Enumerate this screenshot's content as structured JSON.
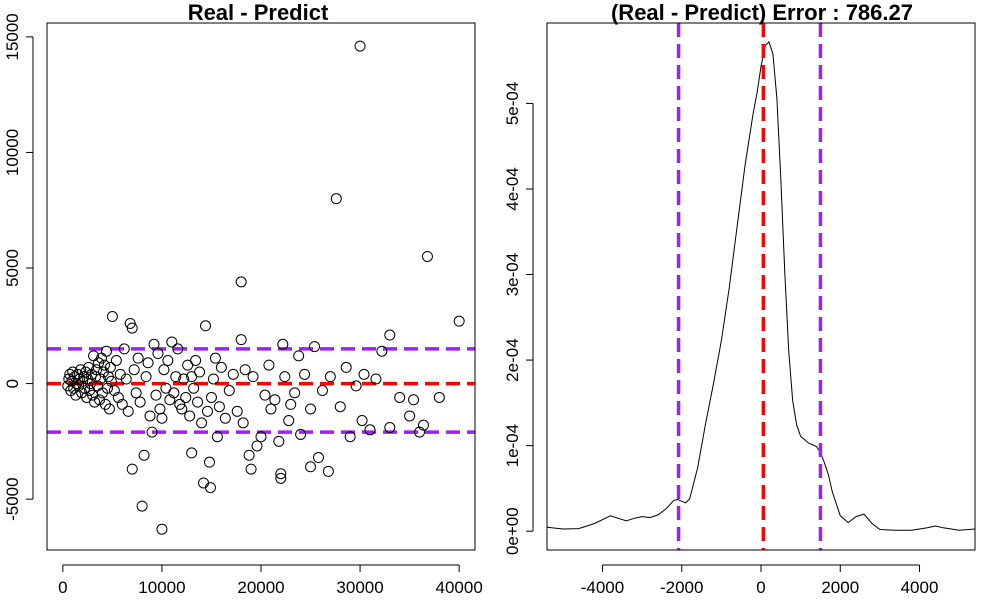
{
  "chart_data": [
    {
      "type": "scatter",
      "title": "Real - Predict",
      "xlabel": "",
      "ylabel": "",
      "xlim": [
        -1600,
        41600
      ],
      "ylim": [
        -7200,
        15600
      ],
      "x_ticks": [
        0,
        10000,
        20000,
        30000,
        40000
      ],
      "x_tick_labels": [
        "0",
        "10000",
        "20000",
        "30000",
        "40000"
      ],
      "y_ticks": [
        -5000,
        0,
        5000,
        10000,
        15000
      ],
      "y_tick_labels": [
        "-5000",
        "0",
        "5000",
        "10000",
        "15000"
      ],
      "grid": false,
      "marker": "open-circle",
      "hlines": [
        {
          "y": 0,
          "color": "#ff0000",
          "style": "dashed"
        },
        {
          "y": 1500,
          "color": "#a020f0",
          "style": "dashed"
        },
        {
          "y": -2100,
          "color": "#a020f0",
          "style": "dashed"
        }
      ],
      "points": [
        [
          500,
          -100
        ],
        [
          600,
          200
        ],
        [
          700,
          400
        ],
        [
          800,
          -300
        ],
        [
          900,
          100
        ],
        [
          1000,
          500
        ],
        [
          1100,
          -200
        ],
        [
          1200,
          300
        ],
        [
          1300,
          -500
        ],
        [
          1400,
          0
        ],
        [
          1500,
          400
        ],
        [
          1600,
          -100
        ],
        [
          1700,
          200
        ],
        [
          1800,
          600
        ],
        [
          1900,
          -400
        ],
        [
          2000,
          100
        ],
        [
          2100,
          300
        ],
        [
          2200,
          -200
        ],
        [
          2300,
          500
        ],
        [
          2400,
          -600
        ],
        [
          2500,
          200
        ],
        [
          2600,
          700
        ],
        [
          2700,
          -300
        ],
        [
          2800,
          0
        ],
        [
          2900,
          400
        ],
        [
          3000,
          -500
        ],
        [
          3100,
          1200
        ],
        [
          3200,
          -800
        ],
        [
          3300,
          300
        ],
        [
          3400,
          600
        ],
        [
          3500,
          -100
        ],
        [
          3600,
          900
        ],
        [
          3700,
          -700
        ],
        [
          3800,
          200
        ],
        [
          3900,
          1100
        ],
        [
          4000,
          -400
        ],
        [
          4100,
          500
        ],
        [
          4200,
          800
        ],
        [
          4300,
          -900
        ],
        [
          4400,
          1400
        ],
        [
          4500,
          -200
        ],
        [
          4600,
          300
        ],
        [
          4700,
          -1100
        ],
        [
          4800,
          700
        ],
        [
          4900,
          100
        ],
        [
          5000,
          2900
        ],
        [
          5200,
          -300
        ],
        [
          5400,
          1000
        ],
        [
          5600,
          -600
        ],
        [
          5800,
          400
        ],
        [
          6000,
          -900
        ],
        [
          6200,
          1500
        ],
        [
          6400,
          200
        ],
        [
          6600,
          -1200
        ],
        [
          6800,
          2600
        ],
        [
          7000,
          2400
        ],
        [
          7000,
          -3700
        ],
        [
          7200,
          600
        ],
        [
          7400,
          -400
        ],
        [
          7600,
          1100
        ],
        [
          7800,
          -800
        ],
        [
          8000,
          -5300
        ],
        [
          8200,
          -3100
        ],
        [
          8400,
          300
        ],
        [
          8600,
          900
        ],
        [
          8800,
          -1400
        ],
        [
          9000,
          -2100
        ],
        [
          9200,
          1700
        ],
        [
          9400,
          -500
        ],
        [
          9600,
          1300
        ],
        [
          9800,
          -1100
        ],
        [
          10000,
          -6300
        ],
        [
          10000,
          -1500
        ],
        [
          10200,
          600
        ],
        [
          10400,
          -200
        ],
        [
          10600,
          1000
        ],
        [
          10800,
          -700
        ],
        [
          11000,
          1800
        ],
        [
          11200,
          -400
        ],
        [
          11400,
          300
        ],
        [
          11600,
          1500
        ],
        [
          11800,
          -900
        ],
        [
          12000,
          -1100
        ],
        [
          12200,
          200
        ],
        [
          12400,
          -600
        ],
        [
          12600,
          800
        ],
        [
          12800,
          -1400
        ],
        [
          13000,
          -3000
        ],
        [
          13000,
          300
        ],
        [
          13200,
          -200
        ],
        [
          13400,
          1000
        ],
        [
          13600,
          -800
        ],
        [
          13800,
          500
        ],
        [
          14000,
          -1700
        ],
        [
          14200,
          -4300
        ],
        [
          14400,
          2500
        ],
        [
          14600,
          -1200
        ],
        [
          14800,
          -3400
        ],
        [
          14900,
          -4500
        ],
        [
          15000,
          -600
        ],
        [
          15200,
          200
        ],
        [
          15400,
          1100
        ],
        [
          15600,
          -2300
        ],
        [
          15800,
          -1000
        ],
        [
          16000,
          700
        ],
        [
          16400,
          -1500
        ],
        [
          16800,
          -300
        ],
        [
          17200,
          400
        ],
        [
          17600,
          -1200
        ],
        [
          18000,
          4400
        ],
        [
          18000,
          1900
        ],
        [
          18200,
          -1700
        ],
        [
          18400,
          600
        ],
        [
          18800,
          -3100
        ],
        [
          19000,
          -3700
        ],
        [
          19200,
          300
        ],
        [
          19600,
          -2700
        ],
        [
          20000,
          -2300
        ],
        [
          20400,
          -500
        ],
        [
          20800,
          800
        ],
        [
          21000,
          -1100
        ],
        [
          21400,
          -700
        ],
        [
          21800,
          -2500
        ],
        [
          22000,
          -3900
        ],
        [
          22000,
          -4100
        ],
        [
          22200,
          1700
        ],
        [
          22400,
          300
        ],
        [
          22800,
          -1600
        ],
        [
          23000,
          -900
        ],
        [
          23400,
          -400
        ],
        [
          23800,
          1200
        ],
        [
          24000,
          -2200
        ],
        [
          24400,
          400
        ],
        [
          25000,
          -3600
        ],
        [
          25000,
          -1100
        ],
        [
          25400,
          1600
        ],
        [
          25800,
          -3200
        ],
        [
          26200,
          -300
        ],
        [
          26800,
          -3800
        ],
        [
          27000,
          300
        ],
        [
          27600,
          8000
        ],
        [
          28000,
          -1000
        ],
        [
          28600,
          700
        ],
        [
          29000,
          -2300
        ],
        [
          29600,
          -100
        ],
        [
          30000,
          14600
        ],
        [
          30200,
          -1600
        ],
        [
          30400,
          400
        ],
        [
          31000,
          -2000
        ],
        [
          31600,
          200
        ],
        [
          32200,
          1400
        ],
        [
          33000,
          -1900
        ],
        [
          33000,
          2100
        ],
        [
          34000,
          -600
        ],
        [
          35000,
          -1400
        ],
        [
          35400,
          -700
        ],
        [
          36000,
          -2100
        ],
        [
          36400,
          -1800
        ],
        [
          36800,
          5500
        ],
        [
          38000,
          -600
        ],
        [
          40000,
          2700
        ]
      ]
    },
    {
      "type": "line",
      "title": "(Real - Predict) Error : 786.27",
      "xlabel": "",
      "ylabel": "",
      "xlim": [
        -5400,
        5400
      ],
      "ylim": [
        -2.2e-05,
        0.000594
      ],
      "x_ticks": [
        -4000,
        -2000,
        0,
        2000,
        4000
      ],
      "x_tick_labels": [
        "-4000",
        "-2000",
        "0",
        "2000",
        "4000"
      ],
      "y_ticks": [
        0,
        0.0001,
        0.0002,
        0.0003,
        0.0004,
        0.0005
      ],
      "y_tick_labels": [
        "0e+00",
        "1e-04",
        "2e-04",
        "3e-04",
        "4e-04",
        "5e-04"
      ],
      "grid": false,
      "vlines": [
        {
          "x": -2080,
          "color": "#a020f0",
          "style": "dashed"
        },
        {
          "x": 60,
          "color": "#ff0000",
          "style": "dashed"
        },
        {
          "x": 1500,
          "color": "#a020f0",
          "style": "dashed"
        }
      ],
      "x": [
        -5400,
        -5000,
        -4600,
        -4200,
        -3800,
        -3400,
        -3200,
        -3000,
        -2800,
        -2600,
        -2400,
        -2200,
        -2100,
        -2000,
        -1900,
        -1800,
        -1600,
        -1400,
        -1200,
        -1000,
        -800,
        -600,
        -400,
        -200,
        -100,
        0,
        100,
        200,
        300,
        400,
        500,
        600,
        700,
        800,
        900,
        1000,
        1200,
        1400,
        1500,
        1600,
        1700,
        1800,
        2000,
        2200,
        2400,
        2600,
        2800,
        3000,
        3400,
        3800,
        4200,
        4400,
        4600,
        5000,
        5400
      ],
      "y": [
        4.5e-06,
        2.5e-06,
        3e-06,
        9e-06,
        1.8e-05,
        1.2e-05,
        1.5e-05,
        1.7e-05,
        1.6e-05,
        1.9e-05,
        2.6e-05,
        3.6e-05,
        3.7e-05,
        3.5e-05,
        3.3e-05,
        3.8e-05,
        7.4e-05,
        0.000125,
        0.000172,
        0.000223,
        0.000285,
        0.000357,
        0.000428,
        0.000488,
        0.000512,
        0.000543,
        0.000567,
        0.000572,
        0.000558,
        0.000506,
        0.000412,
        0.000302,
        0.000211,
        0.000152,
        0.000124,
        0.000111,
        0.000103,
        9.9e-05,
        9.2e-05,
        8e-05,
        6.6e-05,
        4.6e-05,
        1.8e-05,
        1e-05,
        1.7e-05,
        2e-05,
        9e-06,
        2e-06,
        1e-06,
        1e-06,
        4e-06,
        6e-06,
        4e-06,
        1e-06,
        2.5e-06
      ]
    }
  ]
}
